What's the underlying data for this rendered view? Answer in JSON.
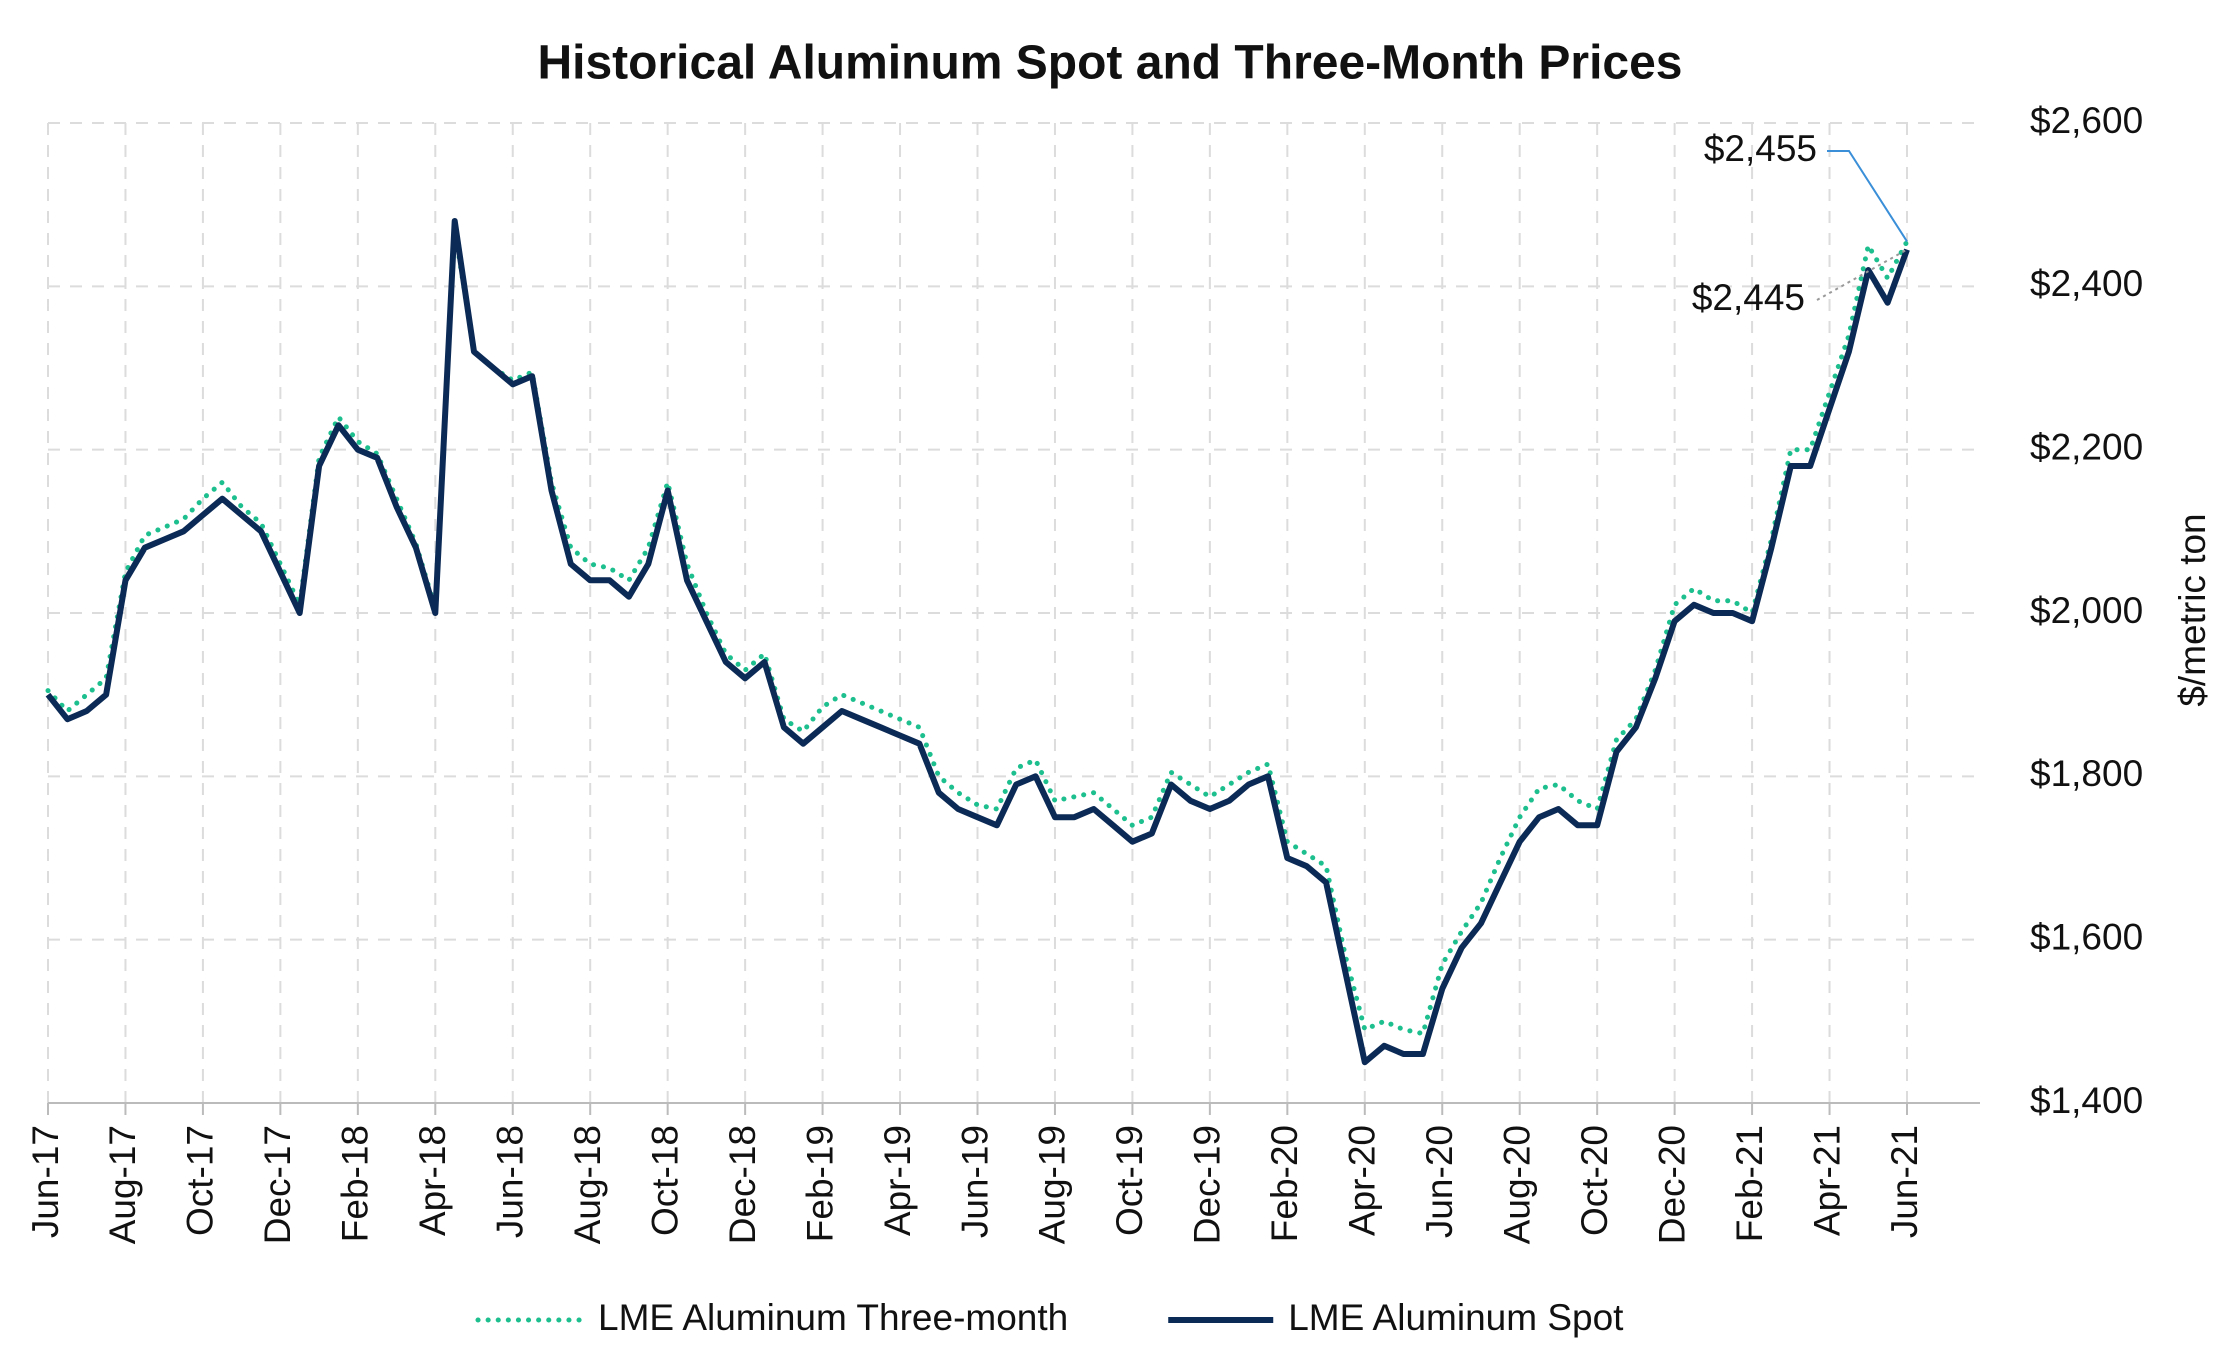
{
  "chart_data": {
    "type": "line",
    "title": "Historical Aluminum Spot and Three-Month Prices",
    "y_label": "$/metric ton",
    "categories": [
      "Jun-17",
      null,
      null,
      null,
      "Aug-17",
      null,
      null,
      null,
      "Oct-17",
      null,
      null,
      null,
      "Dec-17",
      null,
      null,
      null,
      "Feb-18",
      null,
      null,
      null,
      "Apr-18",
      null,
      null,
      null,
      "Jun-18",
      null,
      null,
      null,
      "Aug-18",
      null,
      null,
      null,
      "Oct-18",
      null,
      null,
      null,
      "Dec-18",
      null,
      null,
      null,
      "Feb-19",
      null,
      null,
      null,
      "Apr-19",
      null,
      null,
      null,
      "Jun-19",
      null,
      null,
      null,
      "Aug-19",
      null,
      null,
      null,
      "Oct-19",
      null,
      null,
      null,
      "Dec-19",
      null,
      null,
      null,
      "Feb-20",
      null,
      null,
      null,
      "Apr-20",
      null,
      null,
      null,
      "Jun-20",
      null,
      null,
      null,
      "Aug-20",
      null,
      null,
      null,
      "Oct-20",
      null,
      null,
      null,
      "Dec-20",
      null,
      null,
      null,
      "Feb-21",
      null,
      null,
      null,
      "Apr-21",
      null,
      null,
      null,
      "Jun-21"
    ],
    "series": [
      {
        "name": "LME Aluminum Three-month",
        "color": "#1dbf8e",
        "style": "dotted",
        "end_label": "$2,455",
        "values": [
          1905,
          1880,
          1900,
          1920,
          2050,
          2095,
          2105,
          2115,
          2140,
          2160,
          2130,
          2110,
          2060,
          2010,
          2190,
          2240,
          2210,
          2195,
          2140,
          2085,
          2005,
          2470,
          2320,
          2300,
          2285,
          2295,
          2160,
          2080,
          2060,
          2055,
          2040,
          2080,
          2160,
          2060,
          2000,
          1950,
          1930,
          1950,
          1870,
          1855,
          1885,
          1900,
          1890,
          1880,
          1870,
          1860,
          1800,
          1780,
          1765,
          1760,
          1810,
          1820,
          1770,
          1775,
          1780,
          1760,
          1740,
          1750,
          1805,
          1790,
          1775,
          1790,
          1805,
          1815,
          1720,
          1705,
          1690,
          1580,
          1490,
          1500,
          1490,
          1485,
          1570,
          1610,
          1645,
          1700,
          1750,
          1785,
          1790,
          1770,
          1760,
          1845,
          1870,
          1930,
          2010,
          2030,
          2015,
          2015,
          2000,
          2090,
          2200,
          2200,
          2270,
          2340,
          2450,
          2410,
          2455
        ]
      },
      {
        "name": "LME Aluminum Spot",
        "color": "#0b2a55",
        "style": "solid",
        "end_label": "$2,445",
        "values": [
          1900,
          1870,
          1880,
          1900,
          2040,
          2080,
          2090,
          2100,
          2120,
          2140,
          2120,
          2100,
          2050,
          2000,
          2180,
          2230,
          2200,
          2190,
          2130,
          2080,
          2000,
          2480,
          2320,
          2300,
          2280,
          2290,
          2150,
          2060,
          2040,
          2040,
          2020,
          2060,
          2150,
          2040,
          1990,
          1940,
          1920,
          1940,
          1860,
          1840,
          1860,
          1880,
          1870,
          1860,
          1850,
          1840,
          1780,
          1760,
          1750,
          1740,
          1790,
          1800,
          1750,
          1750,
          1760,
          1740,
          1720,
          1730,
          1790,
          1770,
          1760,
          1770,
          1790,
          1800,
          1700,
          1690,
          1670,
          1560,
          1450,
          1470,
          1460,
          1460,
          1540,
          1590,
          1620,
          1670,
          1720,
          1750,
          1760,
          1740,
          1740,
          1830,
          1860,
          1920,
          1990,
          2010,
          2000,
          2000,
          1990,
          2080,
          2180,
          2180,
          2250,
          2320,
          2420,
          2380,
          2445
        ]
      }
    ],
    "ylim": [
      1400,
      2600
    ],
    "yticks": [
      {
        "value": 1400,
        "label": "$1,400"
      },
      {
        "value": 1600,
        "label": "$1,600"
      },
      {
        "value": 1800,
        "label": "$1,800"
      },
      {
        "value": 2000,
        "label": "$2,000"
      },
      {
        "value": 2200,
        "label": "$2,200"
      },
      {
        "value": 2400,
        "label": "$2,400"
      },
      {
        "value": 2600,
        "label": "$2,600"
      }
    ],
    "grid": true,
    "legend": "bottom"
  }
}
